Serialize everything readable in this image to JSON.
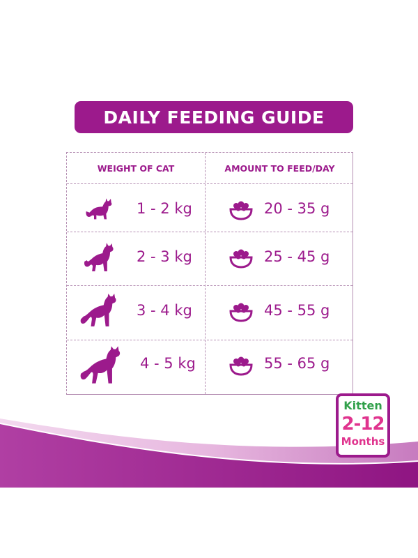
{
  "banner": {
    "title": "DAILY FEEDING GUIDE"
  },
  "table": {
    "headers": {
      "weight": "WEIGHT OF CAT",
      "amount": "AMOUNT TO FEED/DAY"
    },
    "rows": [
      {
        "weight": "1 - 2 kg",
        "amount": "20 - 35 g"
      },
      {
        "weight": "2 - 3 kg",
        "amount": "25 - 45 g"
      },
      {
        "weight": "3 - 4 kg",
        "amount": "45 - 55 g"
      },
      {
        "weight": "4 - 5 kg",
        "amount": "55 - 65 g"
      }
    ]
  },
  "badge": {
    "line1": "Kitten",
    "line2": "2-12",
    "line3": "Months"
  },
  "colors": {
    "brand_purple": "#9c1a8c",
    "badge_green": "#31a04a",
    "badge_pink": "#e0348e"
  },
  "icons": {
    "cat": "cat-silhouette-icon",
    "bowl": "food-bowl-icon"
  }
}
